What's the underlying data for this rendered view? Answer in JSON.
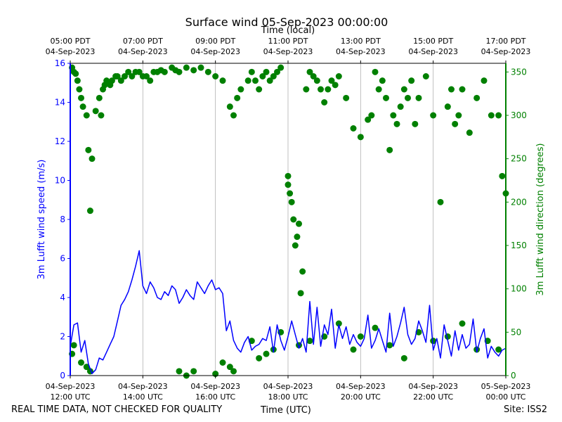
{
  "chart_data": {
    "type": "line+scatter",
    "title": "Surface wind 05-Sep-2023 00:00:00",
    "top_axis_label": "Time (local)",
    "xlabel": "Time (UTC)",
    "ylabel_left": "3m Lufft wind speed (m/s)",
    "ylabel_right": "3m Lufft wind direction (degrees)",
    "footer_left": "REAL TIME DATA, NOT CHECKED FOR QUALITY",
    "footer_right": "Site: ISS2",
    "colors": {
      "speed": "#0000ff",
      "direction": "#008000",
      "grid": "#b0b0b0",
      "axis": "#000000"
    },
    "x_range_hours": [
      0,
      12
    ],
    "y_left_range": [
      0,
      16
    ],
    "y_right_range": [
      0,
      360
    ],
    "y_left_ticks": [
      "0",
      "2",
      "4",
      "6",
      "8",
      "10",
      "12",
      "14",
      "16"
    ],
    "y_right_ticks": [
      "0",
      "50",
      "100",
      "150",
      "200",
      "250",
      "300",
      "350"
    ],
    "bottom_ticks": [
      {
        "hour": 0,
        "line1": "04-Sep-2023",
        "line2": "12:00 UTC"
      },
      {
        "hour": 2,
        "line1": "04-Sep-2023",
        "line2": "14:00 UTC"
      },
      {
        "hour": 4,
        "line1": "04-Sep-2023",
        "line2": "16:00 UTC"
      },
      {
        "hour": 6,
        "line1": "04-Sep-2023",
        "line2": "18:00 UTC"
      },
      {
        "hour": 8,
        "line1": "04-Sep-2023",
        "line2": "20:00 UTC"
      },
      {
        "hour": 10,
        "line1": "04-Sep-2023",
        "line2": "22:00 UTC"
      },
      {
        "hour": 12,
        "line1": "05-Sep-2023",
        "line2": "00:00 UTC"
      }
    ],
    "top_ticks": [
      {
        "hour": 0,
        "line1": "05:00 PDT",
        "line2": "04-Sep-2023"
      },
      {
        "hour": 2,
        "line1": "07:00 PDT",
        "line2": "04-Sep-2023"
      },
      {
        "hour": 4,
        "line1": "09:00 PDT",
        "line2": "04-Sep-2023"
      },
      {
        "hour": 6,
        "line1": "11:00 PDT",
        "line2": "04-Sep-2023"
      },
      {
        "hour": 8,
        "line1": "13:00 PDT",
        "line2": "04-Sep-2023"
      },
      {
        "hour": 10,
        "line1": "15:00 PDT",
        "line2": "04-Sep-2023"
      },
      {
        "hour": 12,
        "line1": "17:00 PDT",
        "line2": "04-Sep-2023"
      }
    ],
    "speed_series": {
      "name": "3m Lufft wind speed",
      "x_hours": [
        0.0,
        0.1,
        0.2,
        0.3,
        0.4,
        0.5,
        0.6,
        0.7,
        0.8,
        0.9,
        1.0,
        1.1,
        1.2,
        1.3,
        1.4,
        1.5,
        1.6,
        1.7,
        1.8,
        1.9,
        2.0,
        2.1,
        2.2,
        2.3,
        2.4,
        2.5,
        2.6,
        2.7,
        2.8,
        2.9,
        3.0,
        3.1,
        3.2,
        3.3,
        3.4,
        3.5,
        3.6,
        3.7,
        3.8,
        3.9,
        4.0,
        4.1,
        4.2,
        4.3,
        4.4,
        4.5,
        4.6,
        4.7,
        4.8,
        4.9,
        5.0,
        5.1,
        5.2,
        5.3,
        5.4,
        5.5,
        5.6,
        5.7,
        5.8,
        5.9,
        6.0,
        6.1,
        6.2,
        6.3,
        6.4,
        6.5,
        6.6,
        6.7,
        6.8,
        6.9,
        7.0,
        7.1,
        7.2,
        7.3,
        7.4,
        7.5,
        7.6,
        7.7,
        7.8,
        7.9,
        8.0,
        8.1,
        8.2,
        8.3,
        8.4,
        8.5,
        8.6,
        8.7,
        8.8,
        8.9,
        9.0,
        9.1,
        9.2,
        9.3,
        9.4,
        9.5,
        9.6,
        9.7,
        9.8,
        9.9,
        10.0,
        10.1,
        10.2,
        10.3,
        10.4,
        10.5,
        10.6,
        10.7,
        10.8,
        10.9,
        11.0,
        11.1,
        11.2,
        11.3,
        11.4,
        11.5,
        11.6,
        11.7,
        11.8,
        11.9,
        12.0
      ],
      "values": [
        1.5,
        2.6,
        2.7,
        1.2,
        1.8,
        0.6,
        0.1,
        0.3,
        0.9,
        0.8,
        1.2,
        1.6,
        2.0,
        2.8,
        3.6,
        3.9,
        4.3,
        4.9,
        5.6,
        6.4,
        4.6,
        4.2,
        4.8,
        4.5,
        4.0,
        3.9,
        4.3,
        4.1,
        4.6,
        4.4,
        3.7,
        4.0,
        4.4,
        4.1,
        3.9,
        4.8,
        4.5,
        4.2,
        4.6,
        4.9,
        4.4,
        4.5,
        4.2,
        2.3,
        2.8,
        1.8,
        1.4,
        1.2,
        1.7,
        2.0,
        1.3,
        1.5,
        1.6,
        1.9,
        1.8,
        2.5,
        1.2,
        2.6,
        1.8,
        1.3,
        2.0,
        2.8,
        2.1,
        1.4,
        1.9,
        1.2,
        3.8,
        1.6,
        3.5,
        1.5,
        2.6,
        2.1,
        3.4,
        1.4,
        2.6,
        1.9,
        2.5,
        1.6,
        2.1,
        1.7,
        1.5,
        1.9,
        3.1,
        1.4,
        1.8,
        2.4,
        1.8,
        1.2,
        3.2,
        1.5,
        2.0,
        2.7,
        3.5,
        2.1,
        1.6,
        1.9,
        2.8,
        2.3,
        1.7,
        3.6,
        1.3,
        1.9,
        0.9,
        2.6,
        1.8,
        1.0,
        2.3,
        1.3,
        2.1,
        1.4,
        1.6,
        2.9,
        1.2,
        1.9,
        2.4,
        0.9,
        1.5,
        1.2,
        1.0,
        1.3,
        1.4
      ]
    },
    "direction_series": {
      "name": "3m Lufft wind direction",
      "x_hours": [
        0.05,
        0.1,
        0.15,
        0.2,
        0.25,
        0.3,
        0.35,
        0.45,
        0.5,
        0.55,
        0.6,
        0.7,
        0.8,
        0.85,
        0.9,
        0.95,
        1.0,
        1.1,
        1.15,
        1.25,
        1.3,
        1.4,
        1.5,
        1.6,
        1.7,
        1.8,
        1.9,
        2.0,
        2.1,
        2.2,
        2.3,
        2.4,
        2.5,
        2.6,
        2.8,
        2.9,
        3.0,
        3.2,
        3.4,
        3.6,
        3.8,
        4.0,
        4.2,
        4.4,
        4.5,
        4.6,
        4.7,
        4.9,
        5.0,
        5.1,
        5.2,
        5.3,
        5.4,
        5.5,
        5.6,
        5.7,
        5.8,
        6.0,
        6.0,
        6.05,
        6.1,
        6.15,
        6.2,
        6.25,
        6.3,
        6.35,
        6.4,
        6.5,
        6.6,
        6.7,
        6.8,
        6.9,
        7.0,
        7.1,
        7.2,
        7.3,
        7.4,
        7.6,
        7.8,
        8.0,
        8.2,
        8.3,
        8.4,
        8.5,
        8.6,
        8.7,
        8.8,
        8.9,
        9.0,
        9.1,
        9.2,
        9.3,
        9.4,
        9.5,
        9.6,
        9.8,
        10.0,
        10.2,
        10.4,
        10.5,
        10.6,
        10.7,
        10.8,
        11.0,
        11.2,
        11.4,
        11.6,
        11.8,
        11.9,
        12.0,
        0.05,
        0.1,
        0.3,
        0.45,
        0.55,
        3.0,
        3.2,
        3.4,
        4.0,
        4.2,
        4.4,
        4.5,
        5.0,
        5.2,
        5.4,
        5.6,
        5.8,
        6.3,
        6.6,
        7.0,
        7.4,
        7.8,
        8.0,
        8.4,
        8.8,
        9.2,
        9.6,
        10.0,
        10.4,
        10.8,
        11.2,
        11.5,
        11.8
      ],
      "values": [
        355,
        350,
        348,
        340,
        330,
        320,
        310,
        300,
        260,
        190,
        250,
        305,
        320,
        300,
        330,
        335,
        340,
        335,
        340,
        345,
        345,
        340,
        345,
        350,
        345,
        350,
        350,
        345,
        345,
        340,
        350,
        350,
        352,
        350,
        355,
        352,
        350,
        355,
        352,
        355,
        350,
        345,
        340,
        310,
        300,
        320,
        330,
        340,
        350,
        340,
        330,
        345,
        350,
        340,
        345,
        350,
        355,
        230,
        220,
        210,
        200,
        180,
        150,
        160,
        175,
        95,
        120,
        330,
        350,
        345,
        340,
        330,
        315,
        330,
        340,
        335,
        345,
        320,
        285,
        275,
        295,
        300,
        350,
        330,
        340,
        320,
        260,
        300,
        290,
        310,
        330,
        320,
        340,
        290,
        320,
        345,
        300,
        200,
        310,
        330,
        290,
        300,
        330,
        280,
        320,
        340,
        300,
        300,
        230,
        210,
        25,
        35,
        15,
        10,
        5,
        5,
        0,
        5,
        2,
        15,
        10,
        5,
        40,
        20,
        25,
        30,
        50,
        35,
        40,
        45,
        60,
        30,
        45,
        55,
        35,
        20,
        50,
        40,
        45,
        60,
        30,
        40,
        30
      ]
    }
  }
}
